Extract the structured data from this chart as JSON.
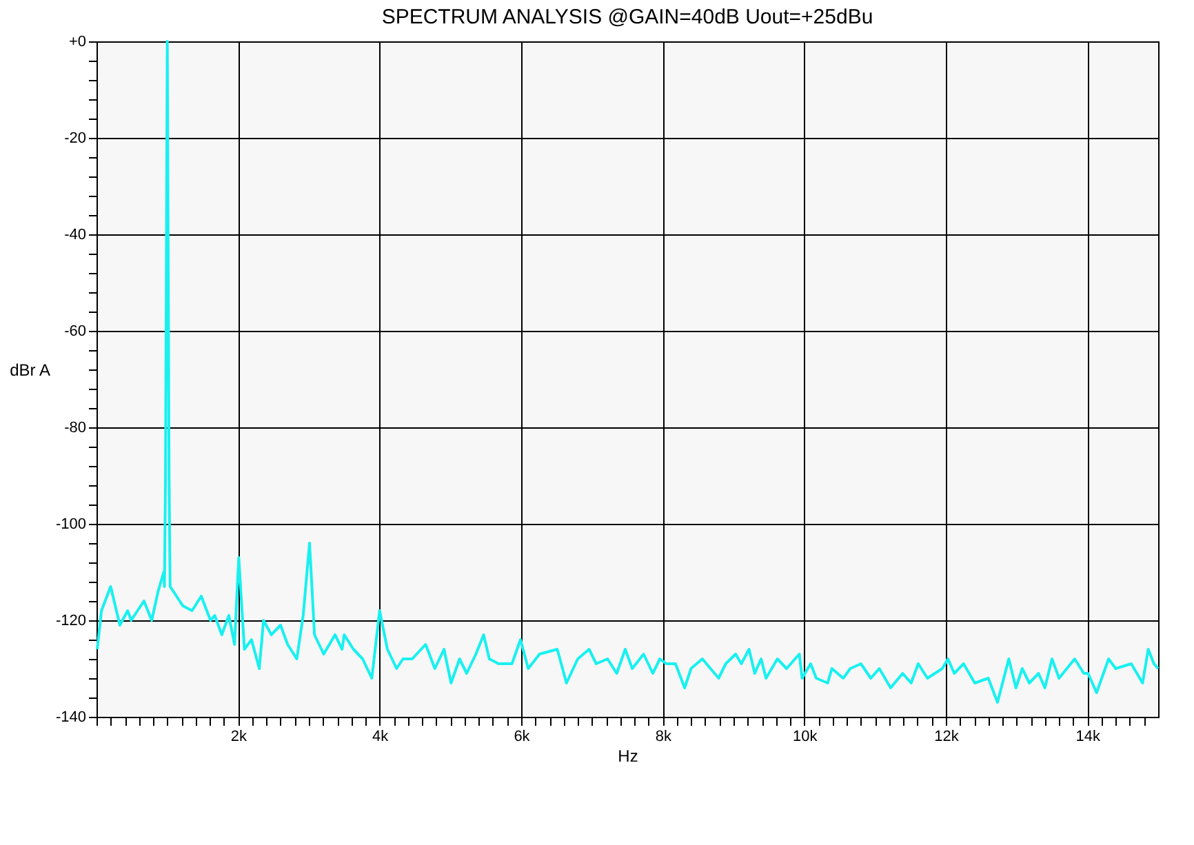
{
  "chart_data": {
    "type": "line",
    "title": "SPECTRUM ANALYSIS @GAIN=40dB Uout=+25dBu",
    "xlabel": "Hz",
    "ylabel": "dBr A",
    "xlim": [
      0,
      15000
    ],
    "ylim": [
      -140,
      0
    ],
    "xticks": [
      {
        "value": 0,
        "label": null
      },
      {
        "value": 200,
        "label": null
      },
      {
        "value": 400,
        "label": null
      },
      {
        "value": 600,
        "label": null
      },
      {
        "value": 800,
        "label": null
      },
      {
        "value": 1000,
        "label": null
      },
      {
        "value": 1200,
        "label": null
      },
      {
        "value": 1400,
        "label": null
      },
      {
        "value": 1600,
        "label": null
      },
      {
        "value": 1800,
        "label": null
      },
      {
        "value": 2000,
        "label": "2k"
      },
      {
        "value": 2200,
        "label": null
      },
      {
        "value": 2400,
        "label": null
      },
      {
        "value": 2600,
        "label": null
      },
      {
        "value": 2800,
        "label": null
      },
      {
        "value": 3000,
        "label": null
      },
      {
        "value": 3200,
        "label": null
      },
      {
        "value": 3400,
        "label": null
      },
      {
        "value": 3600,
        "label": null
      },
      {
        "value": 3800,
        "label": null
      },
      {
        "value": 4000,
        "label": "4k"
      },
      {
        "value": 4200,
        "label": null
      },
      {
        "value": 4400,
        "label": null
      },
      {
        "value": 4600,
        "label": null
      },
      {
        "value": 4800,
        "label": null
      },
      {
        "value": 5000,
        "label": null
      },
      {
        "value": 5200,
        "label": null
      },
      {
        "value": 5400,
        "label": null
      },
      {
        "value": 5600,
        "label": null
      },
      {
        "value": 5800,
        "label": null
      },
      {
        "value": 6000,
        "label": "6k"
      },
      {
        "value": 6200,
        "label": null
      },
      {
        "value": 6400,
        "label": null
      },
      {
        "value": 6600,
        "label": null
      },
      {
        "value": 6800,
        "label": null
      },
      {
        "value": 7000,
        "label": null
      },
      {
        "value": 7200,
        "label": null
      },
      {
        "value": 7400,
        "label": null
      },
      {
        "value": 7600,
        "label": null
      },
      {
        "value": 7800,
        "label": null
      },
      {
        "value": 8000,
        "label": "8k"
      },
      {
        "value": 8200,
        "label": null
      },
      {
        "value": 8400,
        "label": null
      },
      {
        "value": 8600,
        "label": null
      },
      {
        "value": 8800,
        "label": null
      },
      {
        "value": 9000,
        "label": null
      },
      {
        "value": 9200,
        "label": null
      },
      {
        "value": 9400,
        "label": null
      },
      {
        "value": 9600,
        "label": null
      },
      {
        "value": 9800,
        "label": null
      },
      {
        "value": 10000,
        "label": "10k"
      },
      {
        "value": 10200,
        "label": null
      },
      {
        "value": 10400,
        "label": null
      },
      {
        "value": 10600,
        "label": null
      },
      {
        "value": 10800,
        "label": null
      },
      {
        "value": 11000,
        "label": null
      },
      {
        "value": 11200,
        "label": null
      },
      {
        "value": 11400,
        "label": null
      },
      {
        "value": 11600,
        "label": null
      },
      {
        "value": 11800,
        "label": null
      },
      {
        "value": 12000,
        "label": "12k"
      },
      {
        "value": 12200,
        "label": null
      },
      {
        "value": 12400,
        "label": null
      },
      {
        "value": 12600,
        "label": null
      },
      {
        "value": 12800,
        "label": null
      },
      {
        "value": 13000,
        "label": null
      },
      {
        "value": 13200,
        "label": null
      },
      {
        "value": 13400,
        "label": null
      },
      {
        "value": 13600,
        "label": null
      },
      {
        "value": 13800,
        "label": null
      },
      {
        "value": 14000,
        "label": "14k"
      },
      {
        "value": 14200,
        "label": null
      },
      {
        "value": 14400,
        "label": null
      },
      {
        "value": 14600,
        "label": null
      },
      {
        "value": 14800,
        "label": null
      }
    ],
    "yticks": [
      {
        "value": 0,
        "label": "+0"
      },
      {
        "value": -4,
        "label": null
      },
      {
        "value": -8,
        "label": null
      },
      {
        "value": -12,
        "label": null
      },
      {
        "value": -16,
        "label": null
      },
      -20,
      {
        "value": -24,
        "label": null
      },
      {
        "value": -28,
        "label": null
      },
      {
        "value": -32,
        "label": null
      },
      {
        "value": -36,
        "label": null
      },
      -40,
      {
        "value": -44,
        "label": null
      },
      {
        "value": -48,
        "label": null
      },
      {
        "value": -52,
        "label": null
      },
      {
        "value": -56,
        "label": null
      },
      -60,
      {
        "value": -64,
        "label": null
      },
      {
        "value": -68,
        "label": null
      },
      {
        "value": -72,
        "label": null
      },
      {
        "value": -76,
        "label": null
      },
      -80,
      {
        "value": -84,
        "label": null
      },
      {
        "value": -88,
        "label": null
      },
      {
        "value": -92,
        "label": null
      },
      {
        "value": -96,
        "label": null
      },
      -100,
      {
        "value": -104,
        "label": null
      },
      {
        "value": -108,
        "label": null
      },
      {
        "value": -112,
        "label": null
      },
      {
        "value": -116,
        "label": null
      },
      -120,
      {
        "value": -124,
        "label": null
      },
      {
        "value": -128,
        "label": null
      },
      {
        "value": -132,
        "label": null
      },
      {
        "value": -136,
        "label": null
      },
      -140
    ],
    "grid": true,
    "legend": false,
    "marker": "none",
    "line_style": "solid",
    "series": [
      {
        "color": "#19f0f0",
        "x": [
          10,
          70,
          200,
          330,
          440,
          490,
          670,
          780,
          870,
          950,
          960,
          975,
          985,
          995,
          1000,
          1005,
          1015,
          1025,
          1040,
          1130,
          1220,
          1350,
          1480,
          1610,
          1670,
          1770,
          1870,
          1950,
          2010,
          2060,
          2090,
          2190,
          2300,
          2360,
          2470,
          2600,
          2700,
          2830,
          2920,
          3010,
          3080,
          3210,
          3370,
          3470,
          3500,
          3630,
          3760,
          3890,
          4000,
          4110,
          4240,
          4330,
          4460,
          4650,
          4780,
          4910,
          5010,
          5130,
          5230,
          5360,
          5470,
          5550,
          5680,
          5870,
          5990,
          6100,
          6260,
          6510,
          6640,
          6800,
          6960,
          7060,
          7220,
          7350,
          7470,
          7570,
          7730,
          7860,
          7960,
          8050,
          8180,
          8310,
          8400,
          8560,
          8790,
          8890,
          9030,
          9110,
          9220,
          9300,
          9390,
          9460,
          9620,
          9750,
          9930,
          9970,
          10090,
          10170,
          10330,
          10390,
          10550,
          10650,
          10800,
          10940,
          11060,
          11220,
          11390,
          11510,
          11610,
          11740,
          11950,
          12030,
          12120,
          12250,
          12410,
          12600,
          12730,
          12890,
          12990,
          13080,
          13180,
          13310,
          13400,
          13500,
          13600,
          13820,
          13950,
          14010,
          14130,
          14300,
          14400,
          14620,
          14780,
          14860,
          14940,
          15000
        ],
        "values": [
          -126,
          -118,
          -113,
          -121,
          -118,
          -120,
          -116,
          -120,
          -114,
          -110,
          -113,
          -90,
          -53,
          -17,
          0,
          -17,
          -53,
          -90,
          -113,
          -115,
          -117,
          -118,
          -115,
          -120,
          -119,
          -123,
          -119,
          -125,
          -107,
          -119,
          -126,
          -124,
          -130,
          -120,
          -123,
          -121,
          -125,
          -128,
          -119,
          -104,
          -123,
          -127,
          -123,
          -126,
          -123,
          -126,
          -128,
          -132,
          -118,
          -126,
          -130,
          -128,
          -128,
          -125,
          -130,
          -126,
          -133,
          -128,
          -131,
          -127,
          -123,
          -128,
          -129,
          -129,
          -124,
          -130,
          -127,
          -126,
          -133,
          -128,
          -126,
          -129,
          -128,
          -131,
          -126,
          -130,
          -127,
          -131,
          -128,
          -129,
          -129,
          -134,
          -130,
          -128,
          -132,
          -129,
          -127,
          -129,
          -126,
          -131,
          -128,
          -132,
          -128,
          -130,
          -127,
          -132,
          -129,
          -132,
          -133,
          -130,
          -132,
          -130,
          -129,
          -132,
          -130,
          -134,
          -131,
          -133,
          -129,
          -132,
          -130,
          -128,
          -131,
          -129,
          -133,
          -132,
          -137,
          -128,
          -134,
          -130,
          -133,
          -131,
          -134,
          -128,
          -132,
          -128,
          -131,
          -131,
          -135,
          -128,
          -130,
          -129,
          -133,
          -126,
          -129,
          -130
        ]
      }
    ]
  }
}
